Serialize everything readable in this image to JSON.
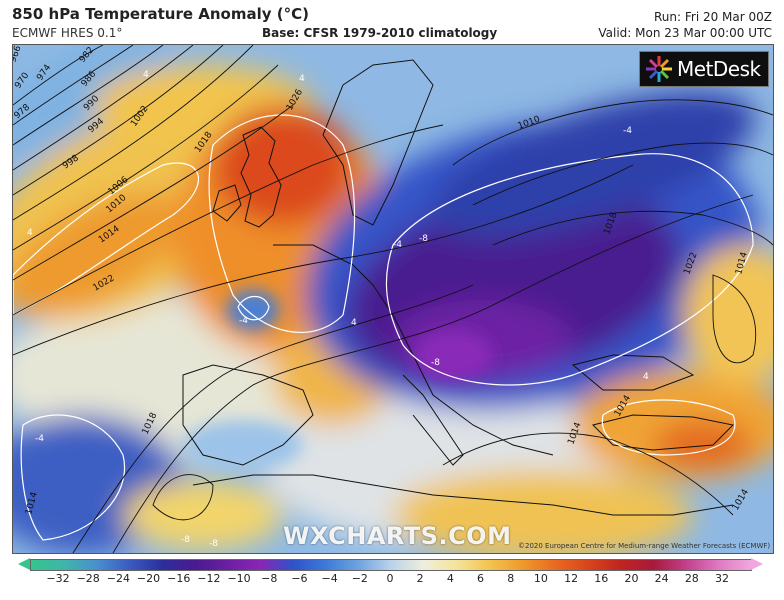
{
  "header": {
    "title": "850 hPa Temperature Anomaly (°C)",
    "model": "ECMWF HRES 0.1°",
    "base": "Base: CFSR 1979-2010 climatology",
    "run": "Run: Fri 20 Mar 00Z",
    "valid": "Valid: Mon 23 Mar 00:00 UTC"
  },
  "brand": {
    "logo_text": "MetDesk",
    "watermark": "WXCHARTS.COM",
    "copyright": "©2020 European Centre for Medium-range Weather Forecasts (ECMWF)"
  },
  "legend": {
    "ticks": [
      "−32",
      "−28",
      "−24",
      "−20",
      "−16",
      "−12",
      "−10",
      "−8",
      "−6",
      "−4",
      "−2",
      "0",
      "2",
      "4",
      "6",
      "8",
      "10",
      "12",
      "16",
      "20",
      "24",
      "28",
      "32"
    ],
    "colors": [
      "#35c48d",
      "#3fb5a8",
      "#4a8fd0",
      "#3a5cc0",
      "#2c2f9c",
      "#4a1a8f",
      "#6a1fa2",
      "#8a26b5",
      "#2f52c9",
      "#3d7ad8",
      "#6ea3df",
      "#b9d3ea",
      "#eeeedd",
      "#f4e49a",
      "#f3c450",
      "#ef9a2c",
      "#e96b20",
      "#d8461c",
      "#c02520",
      "#a81a3a",
      "#c23e8a",
      "#de79c3",
      "#f1a7dd"
    ]
  },
  "map": {
    "isobars": [
      "966",
      "970",
      "974",
      "978",
      "982",
      "986",
      "990",
      "994",
      "998",
      "1002",
      "1006",
      "1010",
      "1014",
      "1018",
      "1022",
      "1026",
      "1018",
      "1014",
      "1010",
      "1018",
      "1022",
      "1014",
      "1014",
      "1014",
      "1014"
    ],
    "anomaly_labels": [
      "4",
      "4",
      "4",
      "-4",
      "-4",
      "-8",
      "-8",
      "-4",
      "4",
      "-4",
      "4",
      "-8",
      "-8"
    ]
  }
}
